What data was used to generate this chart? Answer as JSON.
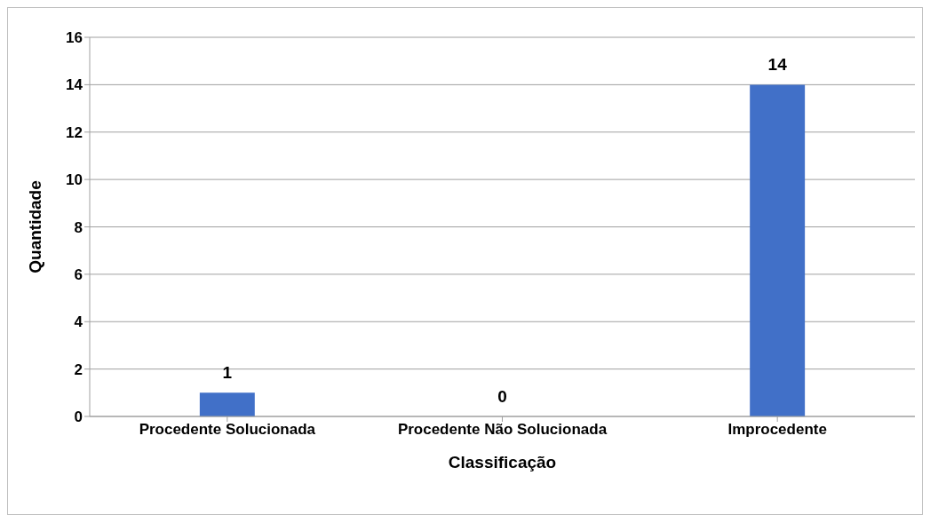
{
  "chart_data": {
    "type": "bar",
    "xlabel": "Classificação",
    "ylabel": "Quantidade",
    "categories": [
      "Procedente Solucionada",
      "Procedente Não Solucionada",
      "Improcedente"
    ],
    "values": [
      1,
      0,
      14
    ],
    "color": "#4170c8",
    "ylim": [
      0,
      16
    ],
    "yticks": [
      0,
      2,
      4,
      6,
      8,
      10,
      12,
      14,
      16
    ],
    "grid": "y",
    "data_labels": true
  }
}
